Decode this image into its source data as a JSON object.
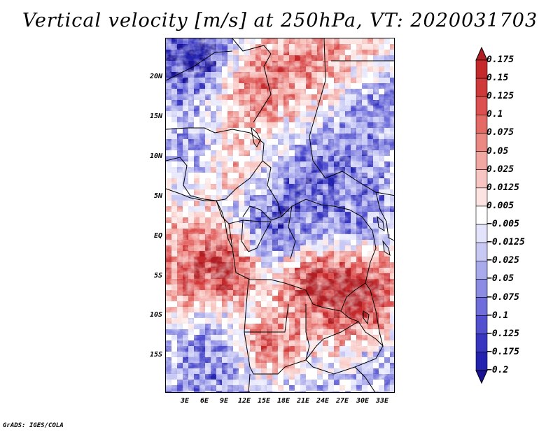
{
  "title": "Vertical velocity [m/s] at 250hPa, VT: 2020031703",
  "footer": "GrADS: IGES/COLA",
  "map": {
    "lat_labels": [
      "20N",
      "15N",
      "10N",
      "5N",
      "EQ",
      "5S",
      "10S",
      "15S"
    ],
    "lon_labels": [
      "3E",
      "6E",
      "9E",
      "12E",
      "15E",
      "18E",
      "21E",
      "24E",
      "27E",
      "30E",
      "33E"
    ]
  },
  "colorbar": {
    "labels": [
      "0.175",
      "0.15",
      "0.125",
      "0.1",
      "0.075",
      "0.05",
      "0.025",
      "0.0125",
      "0.005",
      "−0.005",
      "−0.0125",
      "−0.025",
      "−0.05",
      "−0.075",
      "−0.1",
      "−0.125",
      "−0.175",
      "−0.2"
    ],
    "colors": [
      "#b01e23",
      "#c4292c",
      "#d0393a",
      "#dc504f",
      "#e46a66",
      "#ec8883",
      "#f3a7a2",
      "#f8c6c2",
      "#fce4e2",
      "#ffffff",
      "#e3e4fb",
      "#c7c8f4",
      "#a9aaec",
      "#8b8be4",
      "#6e6ddb",
      "#5250cf",
      "#3836c1",
      "#2423b0",
      "#1a1295"
    ]
  }
}
